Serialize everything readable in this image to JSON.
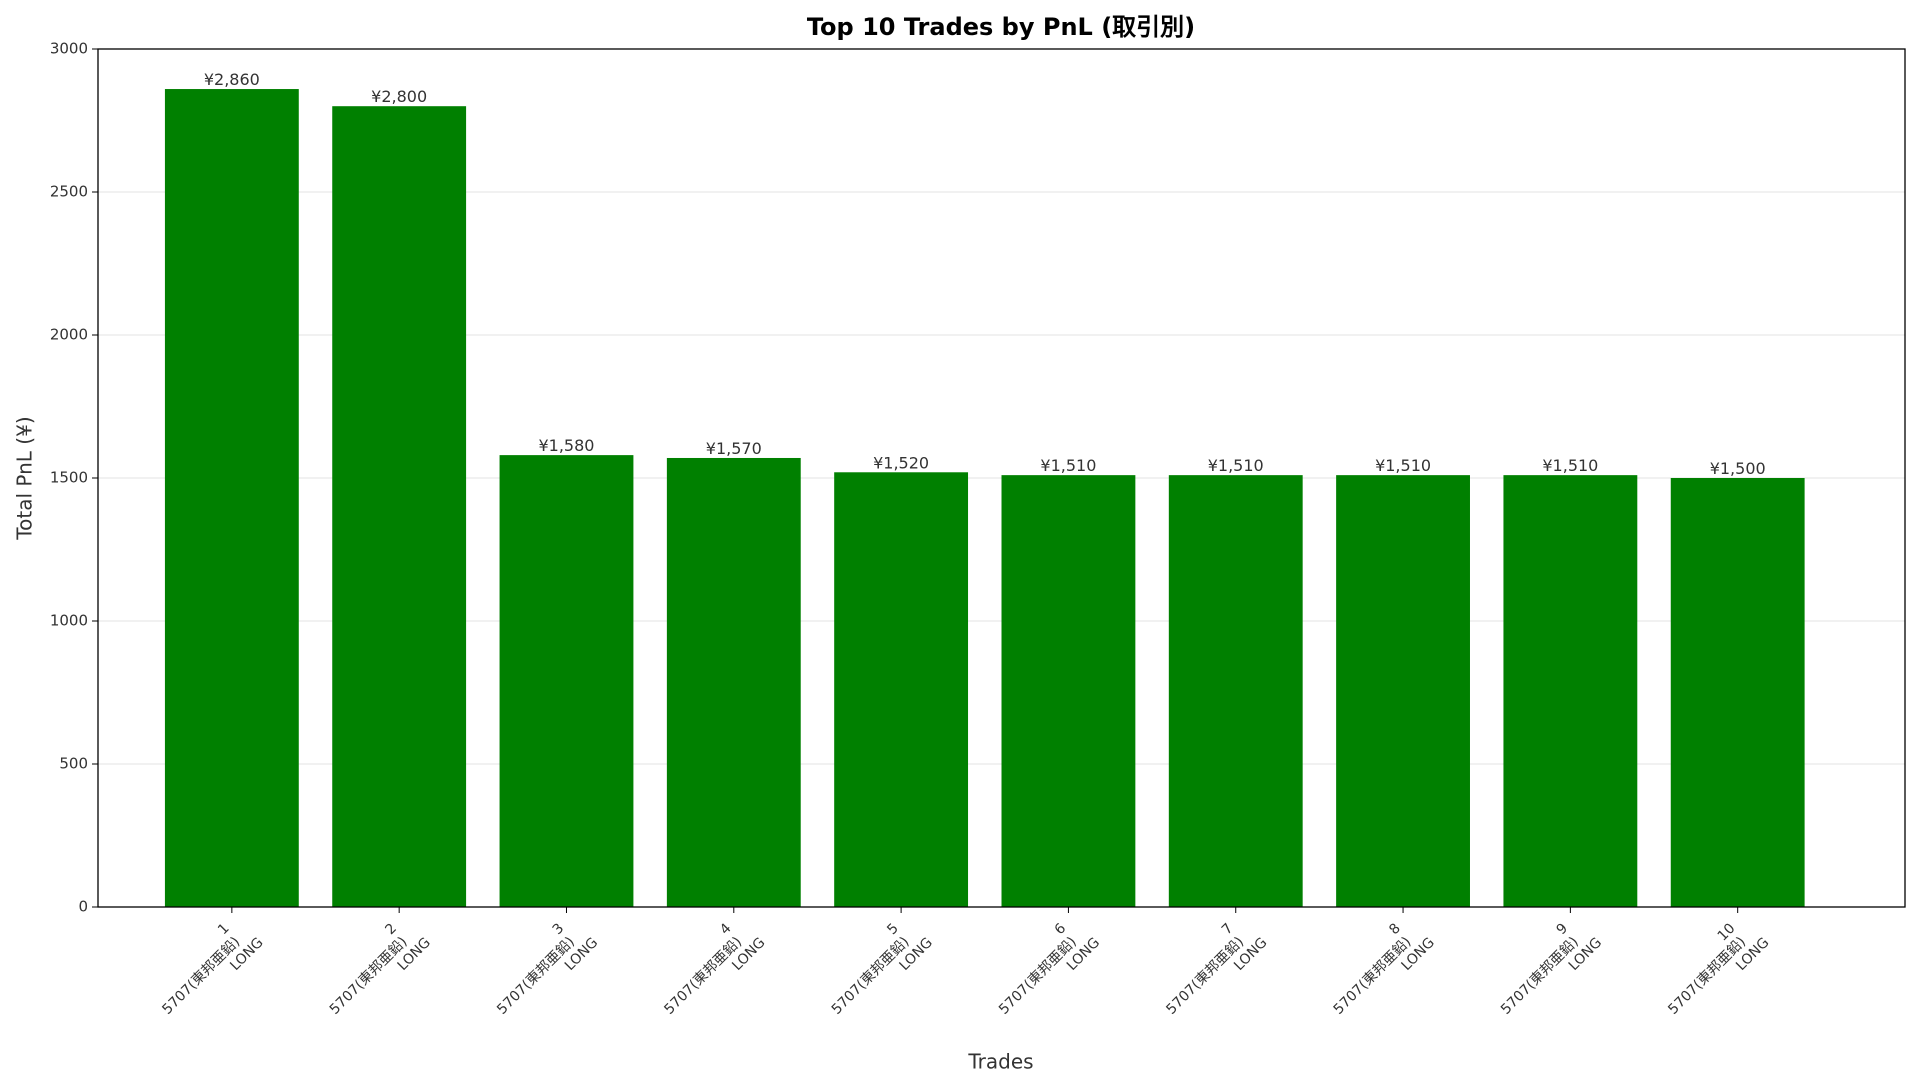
{
  "chart_data": {
    "type": "bar",
    "title": "Top 10 Trades by PnL (取引別)",
    "x_label": "Trades",
    "y_label": "Total PnL (¥)",
    "categories": [
      [
        "1",
        "5707(東邦亜鉛)",
        "LONG"
      ],
      [
        "2",
        "5707(東邦亜鉛)",
        "LONG"
      ],
      [
        "3",
        "5707(東邦亜鉛)",
        "LONG"
      ],
      [
        "4",
        "5707(東邦亜鉛)",
        "LONG"
      ],
      [
        "5",
        "5707(東邦亜鉛)",
        "LONG"
      ],
      [
        "6",
        "5707(東邦亜鉛)",
        "LONG"
      ],
      [
        "7",
        "5707(東邦亜鉛)",
        "LONG"
      ],
      [
        "8",
        "5707(東邦亜鉛)",
        "LONG"
      ],
      [
        "9",
        "5707(東邦亜鉛)",
        "LONG"
      ],
      [
        "10",
        "5707(東邦亜鉛)",
        "LONG"
      ]
    ],
    "values": [
      2860,
      2800,
      1580,
      1570,
      1520,
      1510,
      1510,
      1510,
      1510,
      1500
    ],
    "value_labels": [
      "¥2,860",
      "¥2,800",
      "¥1,580",
      "¥1,570",
      "¥1,520",
      "¥1,510",
      "¥1,510",
      "¥1,510",
      "¥1,510",
      "¥1,500"
    ],
    "color": "#008000",
    "ylim": [
      0,
      3000
    ],
    "yticks": [
      0,
      500,
      1000,
      1500,
      2000,
      2500,
      3000
    ],
    "grid": true
  }
}
